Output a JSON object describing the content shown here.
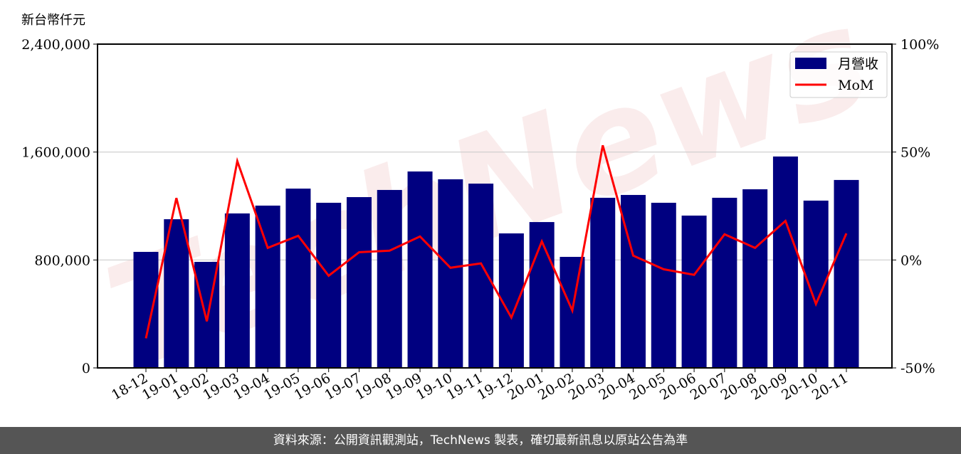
{
  "chart_data": {
    "type": "bar",
    "ylabel": "新台幣仟元",
    "categories": [
      "18-12",
      "19-01",
      "19-02",
      "19-03",
      "19-04",
      "19-05",
      "19-06",
      "19-07",
      "19-08",
      "19-09",
      "19-10",
      "19-11",
      "19-12",
      "20-01",
      "20-02",
      "20-03",
      "20-04",
      "20-05",
      "20-06",
      "20-07",
      "20-08",
      "20-09",
      "20-10",
      "20-11"
    ],
    "series": [
      {
        "name": "月營收",
        "type": "bar",
        "axis": "left",
        "color": "#000080",
        "values": [
          860000,
          1102000,
          786000,
          1145000,
          1203000,
          1329000,
          1224000,
          1266000,
          1319000,
          1456000,
          1398000,
          1366000,
          997000,
          1081000,
          823000,
          1261000,
          1282000,
          1224000,
          1129000,
          1261000,
          1324000,
          1567000,
          1240000,
          1393000
        ]
      },
      {
        "name": "MoM",
        "type": "line",
        "axis": "right",
        "color": "#ff0000",
        "values": [
          -36.3,
          28.7,
          -28.4,
          45.8,
          5.6,
          11.2,
          -7.3,
          3.6,
          4.3,
          10.9,
          -3.6,
          -1.6,
          -26.7,
          8.6,
          -23.4,
          53.1,
          2.0,
          -4.3,
          -6.9,
          11.9,
          5.6,
          18.1,
          -20.4,
          12.3
        ]
      }
    ],
    "ylim": [
      0,
      2400000
    ],
    "yticks": [
      "0",
      "800,000",
      "1,600,000",
      "2,400,000"
    ],
    "y2lim": [
      -50,
      100
    ],
    "y2ticks": [
      "-50%",
      "0%",
      "50%",
      "100%"
    ],
    "grid": "horizontal",
    "legend": "top-right",
    "watermark": "TechNews"
  },
  "footer": {
    "source": "資料來源：公開資訊觀測站，TechNews 製表，確切最新訊息以原站公告為準"
  }
}
